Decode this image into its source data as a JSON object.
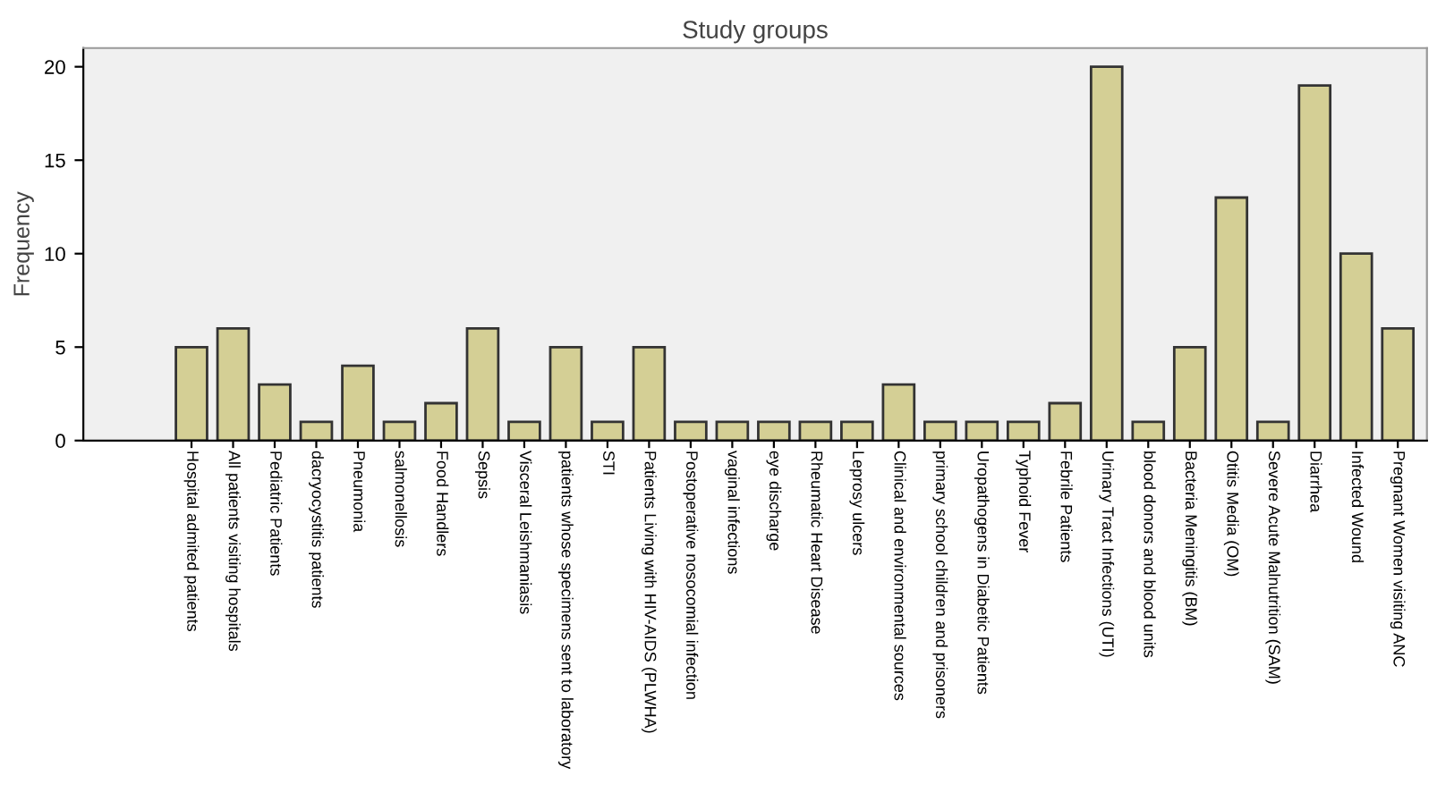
{
  "chart_data": {
    "type": "bar",
    "title": "Study groups",
    "ylabel": "Frequency",
    "categories": [
      "Hospital admited patients",
      "All patients visiting hospitals",
      "Pediatric Patients",
      "dacryocystitis patients",
      "Pneumonia",
      "salmonellosis",
      "Food Handlers",
      "Sepsis",
      "Visceral Leishmaniasis",
      "patients whose specimens sent to laboratory",
      "STI",
      "Patients Living with HIV-AIDS (PLWHA)",
      "Postoperative nosocomial infection",
      "vaginal infections",
      "eye discharge",
      "Rheumatic Heart Disease",
      "Leprosy ulcers",
      "Clinical and environmental sources",
      "primary school children and prisoners",
      "Uropathogens in Diabetic Patients",
      "Typhoid Fever",
      "Febrile Patients",
      "Urinary Tract Infections (UTI)",
      "blood donors and blood units",
      "Bacteria Meningitis (BM)",
      "Otitis Media (OM)",
      "Severe Acute Malnutrition (SAM)",
      "Diarrhea",
      "Infected Wound",
      "Pregnant Women visiting ANC"
    ],
    "values": [
      5,
      6,
      3,
      1,
      4,
      1,
      2,
      6,
      1,
      5,
      1,
      5,
      1,
      1,
      1,
      1,
      1,
      3,
      1,
      1,
      1,
      2,
      20,
      1,
      5,
      13,
      1,
      19,
      10,
      6
    ],
    "color": "#d4cf95",
    "ylim": [
      0,
      21
    ],
    "yticks": [
      0,
      5,
      10,
      15,
      20
    ],
    "grid": false
  }
}
